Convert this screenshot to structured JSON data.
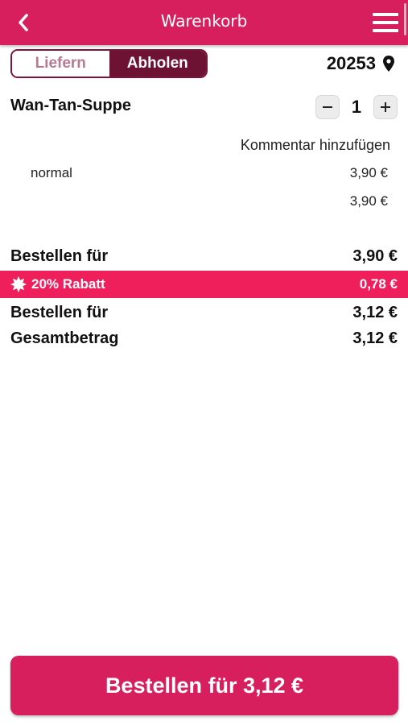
{
  "header": {
    "title": "Warenkorb",
    "back_icon": "chevron-left-icon",
    "menu_icon": "hamburger-menu-icon",
    "color": "#d81f5e"
  },
  "mode_toggle": {
    "options": [
      "Liefern",
      "Abholen"
    ],
    "selected": "Abholen"
  },
  "location": {
    "zip": "20253",
    "icon": "location-pin-icon"
  },
  "cart": {
    "items": [
      {
        "name": "Wan-Tan-Suppe",
        "quantity": "1",
        "comment_label": "Kommentar hinzufügen",
        "variant": "normal",
        "variant_price": "3,90 €",
        "subtotal": "3,90 €"
      }
    ]
  },
  "summary": {
    "order_for_label": "Bestellen für",
    "order_for_value": "3,90 €",
    "discount_label": "20% Rabatt",
    "discount_value": "0,78 €",
    "discount_icon": "badge-star-icon",
    "discount_color": "#ef1f5b",
    "order_for_after_label": "Bestellen für",
    "order_for_after_value": "3,12 €",
    "total_label": "Gesamtbetrag",
    "total_value": "3,12 €"
  },
  "order_button": {
    "label": "Bestellen für 3,12 €"
  }
}
